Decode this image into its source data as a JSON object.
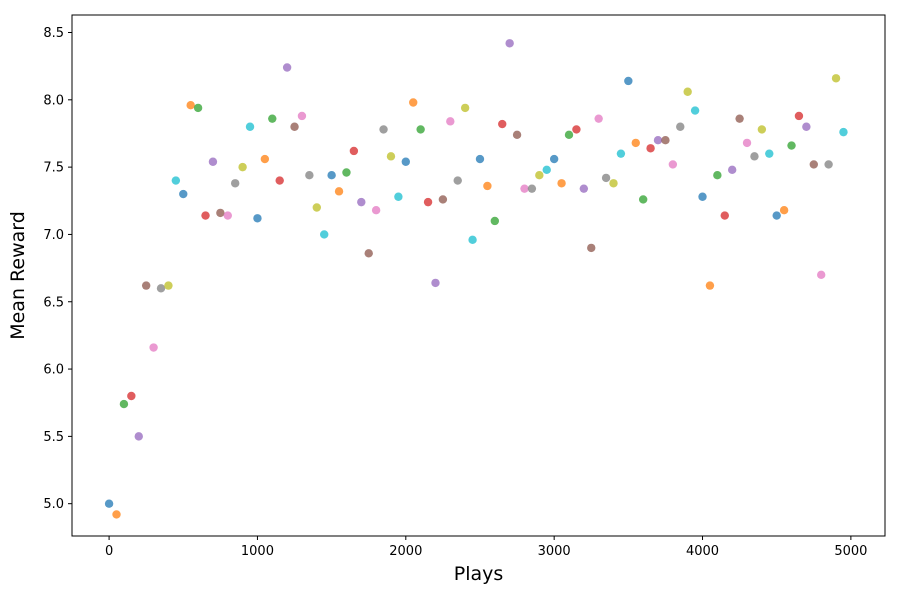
{
  "chart_data": {
    "type": "scatter",
    "title": "",
    "xlabel": "Plays",
    "ylabel": "Mean Reward",
    "xlim": [
      -250,
      5230
    ],
    "ylim": [
      4.76,
      8.63
    ],
    "xticks": [
      0,
      1000,
      2000,
      3000,
      4000,
      5000
    ],
    "yticks": [
      5.0,
      5.5,
      6.0,
      6.5,
      7.0,
      7.5,
      8.0,
      8.5
    ],
    "xtick_labels": [
      "0",
      "1000",
      "2000",
      "3000",
      "4000",
      "5000"
    ],
    "ytick_labels": [
      "5.0",
      "5.5",
      "6.0",
      "6.5",
      "7.0",
      "7.5",
      "8.0",
      "8.5"
    ],
    "grid": false,
    "legend": "none",
    "palette": [
      "#1f77b4",
      "#ff7f0e",
      "#2ca02c",
      "#d62728",
      "#9467bd",
      "#8c564b",
      "#e377c2",
      "#7f7f7f",
      "#bcbd22",
      "#17becf"
    ],
    "marker_alpha": 0.75,
    "points": [
      [
        0,
        5.0
      ],
      [
        50,
        4.92
      ],
      [
        100,
        5.74
      ],
      [
        150,
        5.8
      ],
      [
        200,
        5.5
      ],
      [
        250,
        6.62
      ],
      [
        300,
        6.16
      ],
      [
        350,
        6.6
      ],
      [
        400,
        6.62
      ],
      [
        450,
        7.4
      ],
      [
        500,
        7.3
      ],
      [
        550,
        7.96
      ],
      [
        600,
        7.94
      ],
      [
        650,
        7.14
      ],
      [
        700,
        7.54
      ],
      [
        750,
        7.16
      ],
      [
        800,
        7.14
      ],
      [
        850,
        7.38
      ],
      [
        900,
        7.5
      ],
      [
        950,
        7.8
      ],
      [
        1000,
        7.12
      ],
      [
        1050,
        7.56
      ],
      [
        1100,
        7.86
      ],
      [
        1150,
        7.4
      ],
      [
        1200,
        8.24
      ],
      [
        1250,
        7.8
      ],
      [
        1300,
        7.88
      ],
      [
        1350,
        7.44
      ],
      [
        1400,
        7.2
      ],
      [
        1450,
        7.0
      ],
      [
        1500,
        7.44
      ],
      [
        1550,
        7.32
      ],
      [
        1600,
        7.46
      ],
      [
        1650,
        7.62
      ],
      [
        1700,
        7.24
      ],
      [
        1750,
        6.86
      ],
      [
        1800,
        7.18
      ],
      [
        1850,
        7.78
      ],
      [
        1900,
        7.58
      ],
      [
        1950,
        7.28
      ],
      [
        2000,
        7.54
      ],
      [
        2050,
        7.98
      ],
      [
        2100,
        7.78
      ],
      [
        2150,
        7.24
      ],
      [
        2200,
        6.64
      ],
      [
        2250,
        7.26
      ],
      [
        2300,
        7.84
      ],
      [
        2350,
        7.4
      ],
      [
        2400,
        7.94
      ],
      [
        2450,
        6.96
      ],
      [
        2500,
        7.56
      ],
      [
        2550,
        7.36
      ],
      [
        2600,
        7.1
      ],
      [
        2650,
        7.82
      ],
      [
        2700,
        8.42
      ],
      [
        2750,
        7.74
      ],
      [
        2800,
        7.34
      ],
      [
        2850,
        7.34
      ],
      [
        2900,
        7.44
      ],
      [
        2950,
        7.48
      ],
      [
        3000,
        7.56
      ],
      [
        3050,
        7.38
      ],
      [
        3100,
        7.74
      ],
      [
        3150,
        7.78
      ],
      [
        3200,
        7.34
      ],
      [
        3250,
        6.9
      ],
      [
        3300,
        7.86
      ],
      [
        3350,
        7.42
      ],
      [
        3400,
        7.38
      ],
      [
        3450,
        7.6
      ],
      [
        3500,
        8.14
      ],
      [
        3550,
        7.68
      ],
      [
        3600,
        7.26
      ],
      [
        3650,
        7.64
      ],
      [
        3700,
        7.7
      ],
      [
        3750,
        7.7
      ],
      [
        3800,
        7.52
      ],
      [
        3850,
        7.8
      ],
      [
        3900,
        8.06
      ],
      [
        3950,
        7.92
      ],
      [
        4000,
        7.28
      ],
      [
        4050,
        6.62
      ],
      [
        4100,
        7.44
      ],
      [
        4150,
        7.14
      ],
      [
        4200,
        7.48
      ],
      [
        4250,
        7.86
      ],
      [
        4300,
        7.68
      ],
      [
        4350,
        7.58
      ],
      [
        4400,
        7.78
      ],
      [
        4450,
        7.6
      ],
      [
        4500,
        7.14
      ],
      [
        4550,
        7.18
      ],
      [
        4600,
        7.66
      ],
      [
        4650,
        7.88
      ],
      [
        4700,
        7.8
      ],
      [
        4750,
        7.52
      ],
      [
        4800,
        6.7
      ],
      [
        4850,
        7.52
      ],
      [
        4900,
        8.16
      ],
      [
        4950,
        7.76
      ]
    ]
  }
}
